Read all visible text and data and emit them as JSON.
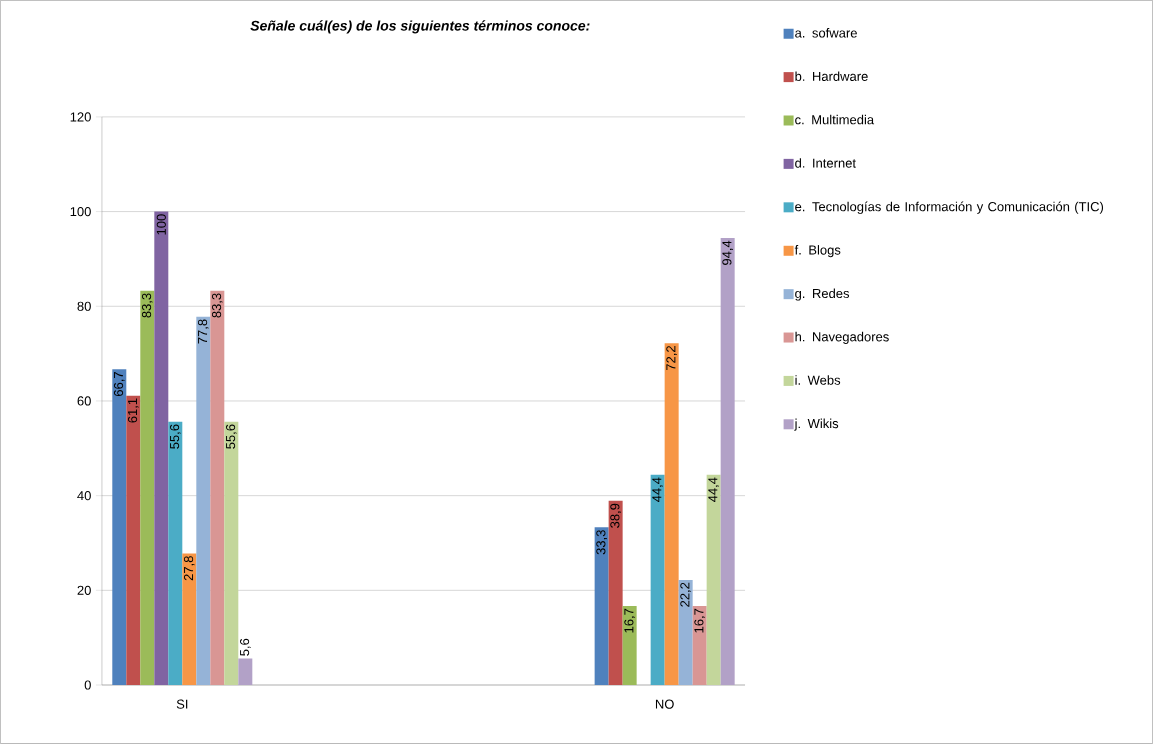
{
  "chart_data": {
    "type": "bar",
    "title": "Señale cuál(es) de los siguientes términos conoce:",
    "categories": [
      "SI",
      null,
      null,
      "NO"
    ],
    "series": [
      {
        "name": "a. sofware",
        "color": "#4f81bd",
        "values": [
          66.7,
          null,
          null,
          33.3
        ],
        "value_labels": [
          "66,7",
          null,
          null,
          "33,3"
        ]
      },
      {
        "name": "b. Hardware",
        "color": "#c0504d",
        "values": [
          61.1,
          null,
          null,
          38.9
        ],
        "value_labels": [
          "61,1",
          null,
          null,
          "38,9"
        ]
      },
      {
        "name": "c. Multimedia",
        "color": "#9bbb59",
        "values": [
          83.3,
          null,
          null,
          16.7
        ],
        "value_labels": [
          "83,3",
          null,
          null,
          "16,7"
        ]
      },
      {
        "name": "d. Internet",
        "color": "#8064a2",
        "values": [
          100,
          null,
          null,
          null
        ],
        "value_labels": [
          "100",
          null,
          null,
          null
        ]
      },
      {
        "name": "e. Tecnologías de Información y Comunicación (TIC)",
        "color": "#4bacc6",
        "values": [
          55.6,
          null,
          null,
          44.4
        ],
        "value_labels": [
          "55,6",
          null,
          null,
          "44,4"
        ]
      },
      {
        "name": "f. Blogs",
        "color": "#f79646",
        "values": [
          27.8,
          null,
          null,
          72.2
        ],
        "value_labels": [
          "27,8",
          null,
          null,
          "72,2"
        ]
      },
      {
        "name": "g. Redes",
        "color": "#95b3d7",
        "values": [
          77.8,
          null,
          null,
          22.2
        ],
        "value_labels": [
          "77,8",
          null,
          null,
          "22,2"
        ]
      },
      {
        "name": "h. Navegadores",
        "color": "#d99694",
        "values": [
          83.3,
          null,
          null,
          16.7
        ],
        "value_labels": [
          "83,3",
          null,
          null,
          "16,7"
        ]
      },
      {
        "name": "i. Webs",
        "color": "#c3d69b",
        "values": [
          55.6,
          null,
          null,
          44.4
        ],
        "value_labels": [
          "55,6",
          null,
          null,
          "44,4"
        ]
      },
      {
        "name": "j. Wikis",
        "color": "#b2a1c7",
        "values": [
          5.6,
          null,
          null,
          94.4
        ],
        "value_labels": [
          "5,6",
          null,
          null,
          "94,4"
        ]
      }
    ],
    "ylim": [
      0,
      120
    ],
    "yticks": [
      0,
      20,
      40,
      60,
      80,
      100,
      120
    ],
    "grid": "y",
    "legend": "right"
  }
}
